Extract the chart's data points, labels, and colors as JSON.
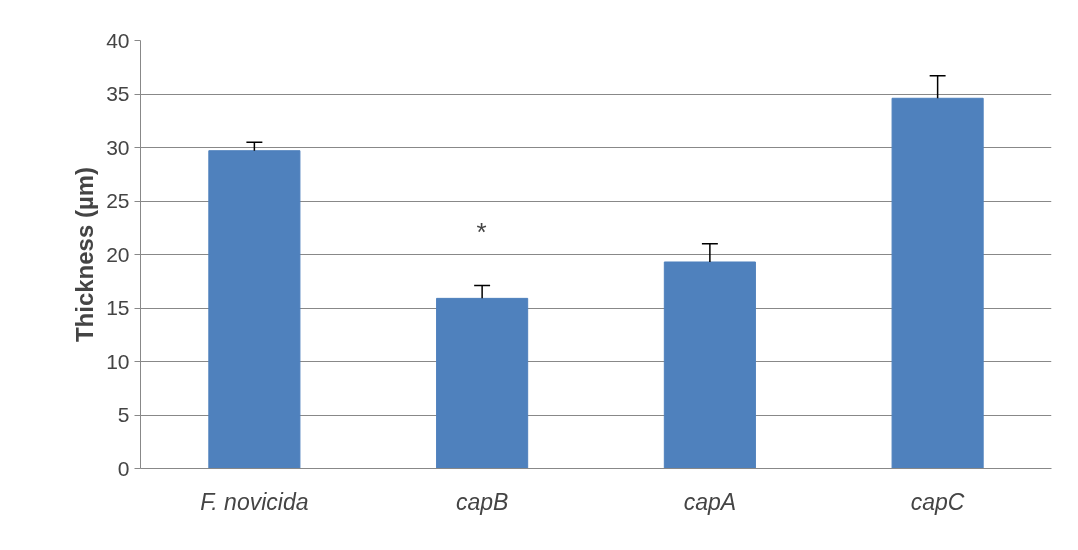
{
  "chart_data": {
    "type": "bar",
    "ylabel": "Thickness (µm)",
    "categories": [
      "F. novicida",
      "capB",
      "capA",
      "capC"
    ],
    "values": [
      29.7,
      15.9,
      19.3,
      34.6
    ],
    "errors": [
      [
        29.7,
        30.5
      ],
      [
        15.9,
        17.1
      ],
      [
        19.3,
        21.0
      ],
      [
        34.6,
        36.7
      ]
    ],
    "color": "#4f81bd",
    "ylim": [
      0,
      40
    ],
    "yticks": [
      0,
      5,
      10,
      15,
      20,
      25,
      30,
      35,
      40
    ],
    "grid": "y",
    "annotations": [
      "*"
    ]
  }
}
